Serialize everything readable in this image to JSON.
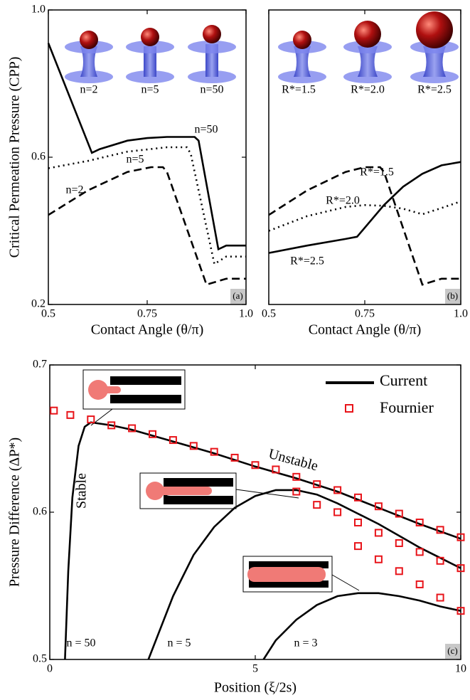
{
  "chart_data": [
    {
      "type": "line",
      "panel_label": "(a)",
      "ylabel": "Critical Permeation Pressure (CPP)",
      "xlabel": "Contact Angle (θ/π)",
      "xlim": [
        0.5,
        1
      ],
      "ylim": [
        0.2,
        1
      ],
      "xticks": [
        0.5,
        0.75,
        {
          "value": 1,
          "label": "1.0"
        }
      ],
      "yticks": [
        0.2,
        0.6,
        {
          "value": 1,
          "label": "1.0"
        }
      ],
      "insets": [
        "n=2",
        "n=5",
        "n=50"
      ],
      "series": [
        {
          "name": "n=50",
          "color": "#000000",
          "dash": "solid",
          "x": [
            0.5,
            0.61,
            0.63,
            0.7,
            0.75,
            0.8,
            0.87,
            0.88,
            0.93,
            0.95,
            1.0
          ],
          "values": [
            0.91,
            0.612,
            0.622,
            0.645,
            0.652,
            0.655,
            0.655,
            0.645,
            0.35,
            0.36,
            0.36
          ]
        },
        {
          "name": "n=5",
          "color": "#000000",
          "dash": "dotted",
          "x": [
            0.5,
            0.6,
            0.7,
            0.8,
            0.85,
            0.86,
            0.92,
            0.95,
            1.0
          ],
          "values": [
            0.57,
            0.59,
            0.615,
            0.627,
            0.627,
            0.61,
            0.31,
            0.33,
            0.33
          ]
        },
        {
          "name": "n=2",
          "color": "#000000",
          "dash": "dashed",
          "x": [
            0.5,
            0.6,
            0.7,
            0.76,
            0.79,
            0.8,
            0.9,
            0.95,
            1.0
          ],
          "values": [
            0.443,
            0.51,
            0.56,
            0.573,
            0.573,
            0.56,
            0.254,
            0.27,
            0.27
          ]
        }
      ]
    },
    {
      "type": "line",
      "panel_label": "(b)",
      "xlabel": "Contact Angle (θ/π)",
      "xlim": [
        0.5,
        1
      ],
      "ylim": [
        0.2,
        1
      ],
      "xticks": [
        0.5,
        0.75,
        {
          "value": 1,
          "label": "1.0"
        }
      ],
      "insets": [
        "R*=1.5",
        "R*=2.0",
        "R*=2.5"
      ],
      "series": [
        {
          "name": "R*=1.5",
          "color": "#000000",
          "dash": "dashed",
          "x": [
            0.5,
            0.6,
            0.7,
            0.75,
            0.79,
            0.8,
            0.9,
            0.95,
            1.0
          ],
          "values": [
            0.443,
            0.51,
            0.56,
            0.573,
            0.573,
            0.56,
            0.254,
            0.27,
            0.27
          ]
        },
        {
          "name": "R*=2.0",
          "color": "#000000",
          "dash": "dotted",
          "x": [
            0.5,
            0.6,
            0.7,
            0.75,
            0.8,
            0.85,
            0.9,
            0.95,
            1.0
          ],
          "values": [
            0.4,
            0.44,
            0.465,
            0.47,
            0.468,
            0.46,
            0.445,
            0.462,
            0.48
          ]
        },
        {
          "name": "R*=2.5",
          "color": "#000000",
          "dash": "solid",
          "x": [
            0.5,
            0.6,
            0.7,
            0.73,
            0.8,
            0.85,
            0.9,
            0.95,
            1.0
          ],
          "values": [
            0.34,
            0.36,
            0.378,
            0.384,
            0.47,
            0.52,
            0.555,
            0.578,
            0.587
          ]
        }
      ]
    },
    {
      "type": "line-scatter",
      "panel_label": "(c)",
      "ylabel": "Pressure Difference (ΔP*)",
      "xlabel": "Position (ξ/2s)",
      "xlim": [
        0,
        10
      ],
      "ylim": [
        0.5,
        0.7
      ],
      "xticks": [
        0,
        5,
        10
      ],
      "yticks": [
        0.5,
        0.6,
        0.7
      ],
      "legend": "top-right",
      "annotations": [
        "Unstable",
        "Stable"
      ],
      "series": [
        {
          "name": "Current",
          "color": "#000000",
          "curves": [
            {
              "label": "n = 50",
              "x": [
                0.37,
                0.45,
                0.55,
                0.7,
                0.85,
                1,
                1.5,
                2,
                3,
                4,
                5,
                6,
                7,
                8,
                9,
                10
              ],
              "values": [
                0.5,
                0.56,
                0.61,
                0.645,
                0.658,
                0.661,
                0.659,
                0.656,
                0.648,
                0.64,
                0.631,
                0.623,
                0.614,
                0.603,
                0.592,
                0.582
              ]
            },
            {
              "label": "n = 5",
              "x": [
                2.4,
                3,
                3.5,
                4,
                4.5,
                5,
                5.5,
                6,
                6.5,
                7,
                7.5,
                8,
                8.5,
                9,
                9.5,
                10
              ],
              "values": [
                0.5,
                0.543,
                0.571,
                0.59,
                0.603,
                0.611,
                0.615,
                0.615,
                0.612,
                0.606,
                0.599,
                0.592,
                0.584,
                0.576,
                0.569,
                0.562
              ]
            },
            {
              "label": "n = 3",
              "x": [
                5.2,
                5.5,
                6,
                6.5,
                7,
                7.5,
                8,
                8.5,
                9,
                9.5,
                10
              ],
              "values": [
                0.5,
                0.513,
                0.527,
                0.537,
                0.543,
                0.545,
                0.545,
                0.543,
                0.54,
                0.536,
                0.533
              ]
            }
          ]
        },
        {
          "name": "Fournier",
          "color": "#e8141a",
          "groups": [
            {
              "x": [
                0.1,
                0.5,
                1,
                1.5,
                2,
                2.5,
                3,
                3.5,
                4,
                4.5,
                5,
                5.5,
                6,
                6.5,
                7,
                7.5,
                8,
                8.5,
                9,
                9.5,
                10
              ],
              "values": [
                0.669,
                0.666,
                0.663,
                0.659,
                0.657,
                0.653,
                0.649,
                0.645,
                0.641,
                0.637,
                0.632,
                0.629,
                0.624,
                0.619,
                0.615,
                0.61,
                0.604,
                0.599,
                0.593,
                0.588,
                0.583
              ]
            },
            {
              "x": [
                6,
                6.5,
                7,
                7.5,
                8,
                8.5,
                9,
                9.5,
                10
              ],
              "values": [
                0.614,
                0.605,
                0.6,
                0.593,
                0.586,
                0.579,
                0.573,
                0.567,
                0.562
              ]
            },
            {
              "x": [
                7.5,
                8,
                8.5,
                9,
                9.5,
                10
              ],
              "values": [
                0.577,
                0.568,
                0.56,
                0.551,
                0.542,
                0.533
              ]
            }
          ]
        }
      ]
    }
  ]
}
